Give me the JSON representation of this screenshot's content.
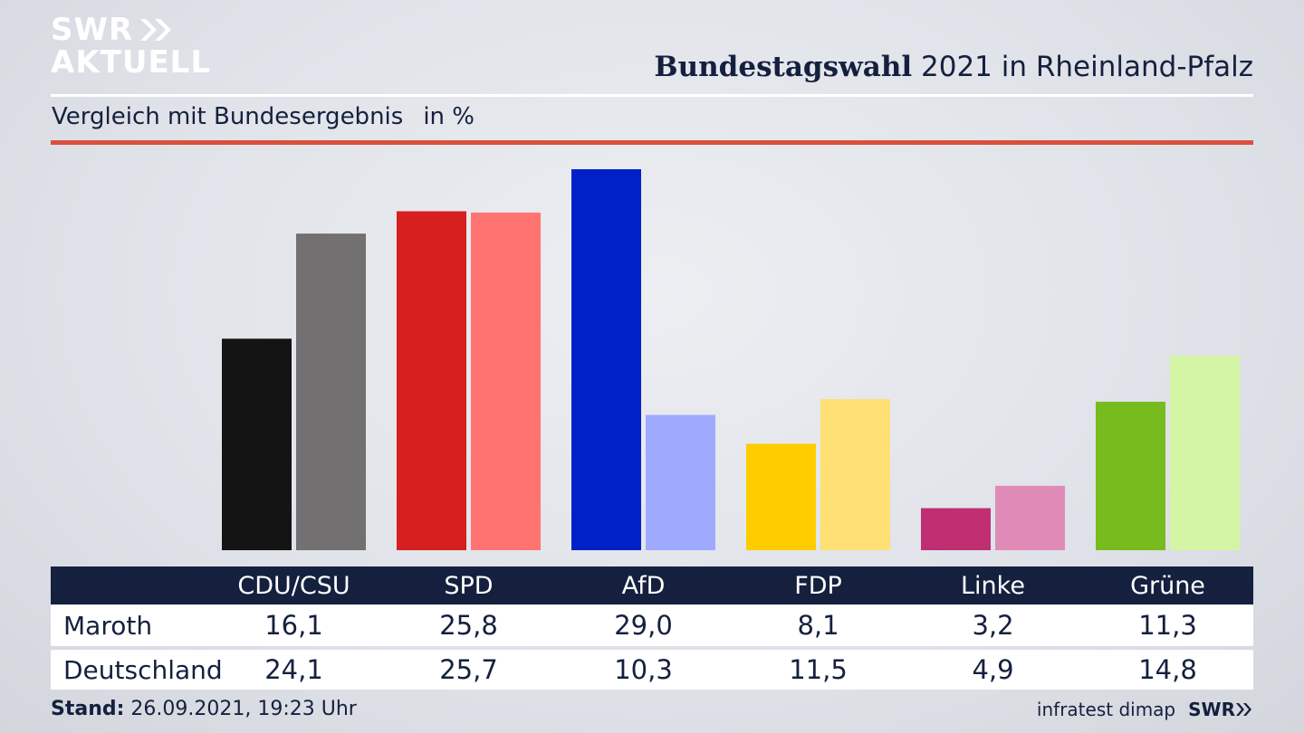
{
  "header": {
    "logo_top": "SWR",
    "logo_bottom": "AKTUELL",
    "title_bold": "Bundestagswahl",
    "title_rest": " 2021 in Rheinland-Pfalz",
    "subtitle": "Vergleich mit Bundesergebnis",
    "unit": "in %"
  },
  "colors": {
    "navy": "#14203e",
    "accent_red": "#d9503c"
  },
  "chart_data": {
    "type": "bar",
    "title": "Bundestagswahl 2021 in Rheinland-Pfalz",
    "subtitle": "Vergleich mit Bundesergebnis",
    "unit": "in %",
    "categories": [
      "CDU/CSU",
      "SPD",
      "AfD",
      "FDP",
      "Linke",
      "Grüne"
    ],
    "series": [
      {
        "name": "Maroth",
        "values": [
          16.1,
          25.8,
          29.0,
          8.1,
          3.2,
          11.3
        ],
        "colors": [
          "#141414",
          "#d71f1f",
          "#0021c8",
          "#ffcc00",
          "#bf2f72",
          "#77bb1e"
        ]
      },
      {
        "name": "Deutschland",
        "values": [
          24.1,
          25.7,
          10.3,
          11.5,
          4.9,
          14.8
        ],
        "colors": [
          "#727070",
          "#ff7471",
          "#9faaff",
          "#ffe074",
          "#e08ab7",
          "#d4f5a5"
        ]
      }
    ],
    "ylim": [
      0,
      29.0
    ],
    "grid": false,
    "legend": "table-below"
  },
  "table": {
    "rows": [
      {
        "label": "Maroth",
        "values": [
          "16,1",
          "25,8",
          "29,0",
          "8,1",
          "3,2",
          "11,3"
        ]
      },
      {
        "label": "Deutschland",
        "values": [
          "24,1",
          "25,7",
          "10,3",
          "11,5",
          "4,9",
          "14,8"
        ]
      }
    ]
  },
  "footer": {
    "stand_label": "Stand:",
    "stand_value": " 26.09.2021, 19:23 Uhr",
    "source": "infratest dimap",
    "brand": "SWR"
  }
}
